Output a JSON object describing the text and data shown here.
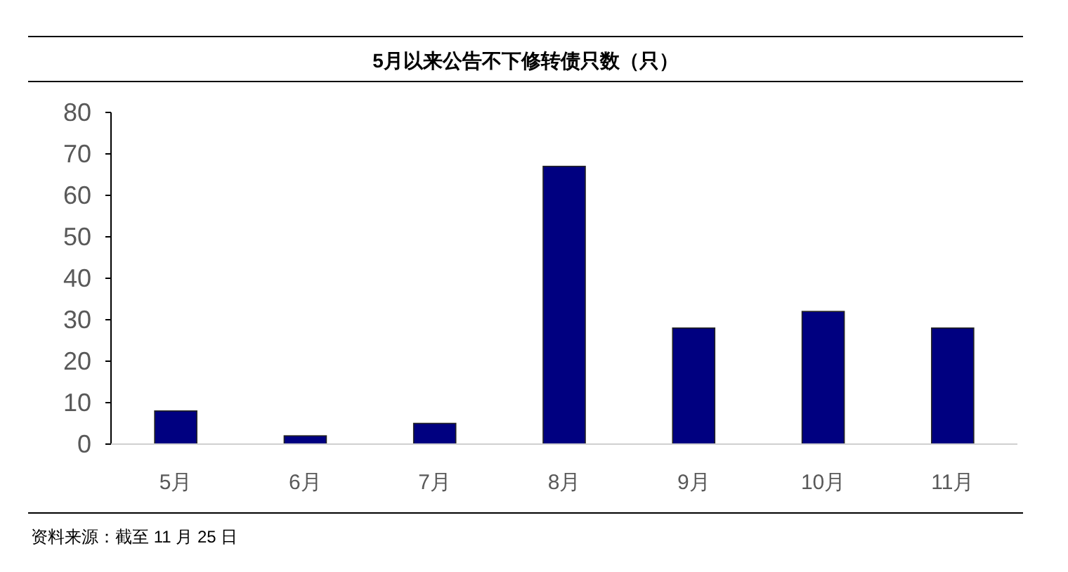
{
  "chart_data": {
    "type": "bar",
    "title": "5月以来公告不下修转债只数（只）",
    "categories": [
      "5月",
      "6月",
      "7月",
      "8月",
      "9月",
      "10月",
      "11月"
    ],
    "values": [
      8,
      2,
      5,
      67,
      28,
      32,
      28
    ],
    "color": "#000080",
    "ylim": [
      0,
      80
    ],
    "yticks": [
      0,
      10,
      20,
      30,
      40,
      50,
      60,
      70,
      80
    ],
    "grid": false,
    "annotations": [
      "资料来源：截至 11 月 25 日"
    ]
  }
}
